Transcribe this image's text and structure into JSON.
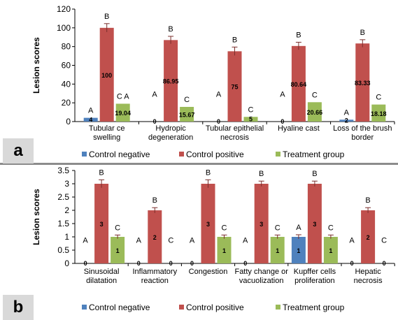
{
  "colors": {
    "control_negative": "#4f81bd",
    "control_positive": "#c0504d",
    "treatment_group": "#9bbb59",
    "error_bar": "#7a2e2c"
  },
  "panels": [
    {
      "label": "a"
    },
    {
      "label": "b"
    }
  ],
  "chart_data": [
    {
      "type": "bar",
      "panel": "a",
      "title": "",
      "xlabel": "",
      "ylabel": "Lesion scores",
      "ylim": [
        0,
        120
      ],
      "yticks": [
        "0",
        "20",
        "40",
        "60",
        "80",
        "100",
        "120"
      ],
      "grid": false,
      "legend_position": "bottom",
      "categories": [
        [
          "Tubular ce",
          "swelling"
        ],
        [
          "Hydropic",
          "degeneration"
        ],
        [
          "Tubular epithelial",
          "necrosis"
        ],
        [
          "Hyaline cast"
        ],
        [
          "Loss of the brush",
          "border"
        ]
      ],
      "series": [
        {
          "name": "Control negative",
          "values": [
            4,
            0,
            0,
            0,
            2
          ],
          "value_labels": [
            "4",
            "0",
            "0",
            "0",
            "2"
          ],
          "letters": [
            "A",
            "A",
            "A",
            "A",
            "A"
          ],
          "errors": [
            0,
            0,
            0,
            0,
            0
          ]
        },
        {
          "name": "Control positive",
          "values": [
            100,
            86.95,
            75,
            80.64,
            83.33
          ],
          "value_labels": [
            "100",
            "86.95",
            "75",
            "80.64",
            "83.33"
          ],
          "letters": [
            "B",
            "B",
            "B",
            "B",
            "B"
          ],
          "errors": [
            4.5,
            4,
            4.5,
            4,
            4
          ]
        },
        {
          "name": "Treatment group",
          "values": [
            19.04,
            15.67,
            5,
            20.66,
            18.18
          ],
          "value_labels": [
            "19.04",
            "15.67",
            "5",
            "20.66",
            "18.18"
          ],
          "letters": [
            "C A",
            "C",
            "C",
            "C",
            "C"
          ],
          "errors": [
            0,
            0,
            0,
            0,
            0
          ]
        }
      ]
    },
    {
      "type": "bar",
      "panel": "b",
      "title": "",
      "xlabel": "",
      "ylabel": "Lesion scores",
      "ylim": [
        0,
        3.5
      ],
      "yticks": [
        "0",
        "0.5",
        "1",
        "1.5",
        "2",
        "2.5",
        "3",
        "3.5"
      ],
      "grid": false,
      "legend_position": "bottom",
      "categories": [
        [
          "Sinusoidal",
          "dilatation"
        ],
        [
          "Inflammatory",
          "reaction"
        ],
        [
          "Congestion"
        ],
        [
          "Fatty change or",
          "vacuolization"
        ],
        [
          "Kupffer cells",
          "proliferation"
        ],
        [
          "Hepatic",
          "necrosis"
        ]
      ],
      "series": [
        {
          "name": "Control negative",
          "values": [
            0,
            0,
            0,
            0,
            1,
            0
          ],
          "value_labels": [
            "0",
            "0",
            "0",
            "0",
            "1",
            "0"
          ],
          "letters": [
            "A",
            "A",
            "A",
            "A",
            "A",
            "A"
          ],
          "errors": [
            0,
            0,
            0,
            0,
            0.08,
            0
          ]
        },
        {
          "name": "Control positive",
          "values": [
            3,
            2,
            3,
            3,
            3,
            2
          ],
          "value_labels": [
            "3",
            "2",
            "3",
            "3",
            "3",
            "2"
          ],
          "letters": [
            "B",
            "B",
            "B",
            "B",
            "B",
            "B"
          ],
          "errors": [
            0.15,
            0.1,
            0.15,
            0.1,
            0.1,
            0.1
          ]
        },
        {
          "name": "Treatment group",
          "values": [
            1,
            0,
            1,
            1,
            1,
            0
          ],
          "value_labels": [
            "1",
            "0",
            "1",
            "1",
            "1",
            "0"
          ],
          "letters": [
            "C",
            "C",
            "C",
            "C",
            "C",
            "C"
          ],
          "errors": [
            0.07,
            0,
            0.07,
            0.07,
            0.07,
            0
          ]
        }
      ]
    }
  ]
}
